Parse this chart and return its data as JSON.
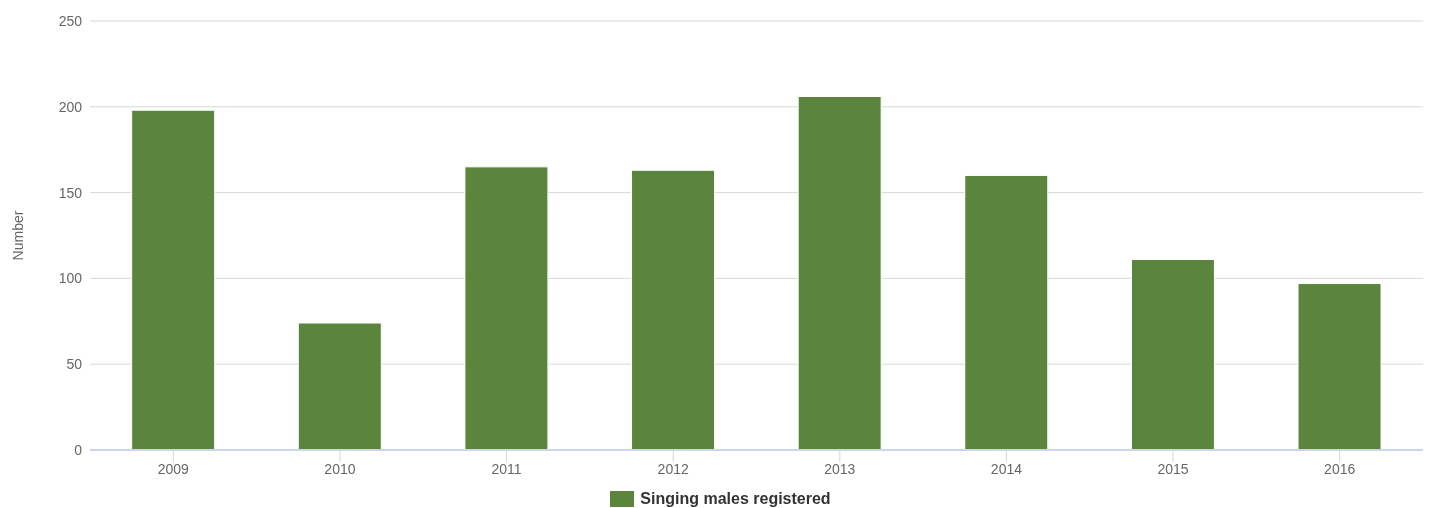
{
  "chart_data": {
    "type": "bar",
    "ylabel": "Number",
    "categories": [
      "2009",
      "2010",
      "2011",
      "2012",
      "2013",
      "2014",
      "2015",
      "2016"
    ],
    "series": [
      {
        "name": "Singing males registered",
        "color": "#5b843d",
        "values": [
          198,
          74,
          165,
          163,
          206,
          160,
          111,
          97
        ]
      }
    ],
    "ylim": [
      0,
      250
    ],
    "yticks": [
      0,
      50,
      100,
      150,
      200,
      250
    ],
    "grid": "y",
    "legend": "bottom"
  }
}
